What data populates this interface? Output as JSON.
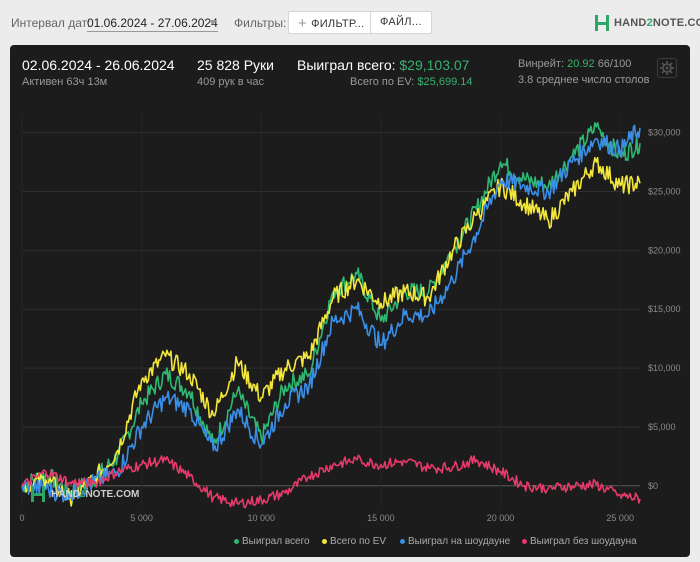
{
  "topbar": {
    "interval_label": "Интервал дат:",
    "date_range": "01.06.2024 - 27.06.2024",
    "filters_label": "Фильтры:",
    "filter_button": "ФИЛЬТР...",
    "file_button": "ФАЙЛ...",
    "logo_hand": "HAND",
    "logo_two": "2",
    "logo_note": "NOTE.COM"
  },
  "summary": {
    "period": "02.06.2024 - 26.06.2024",
    "active": "Активен 63ч 13м",
    "hands": "25 828 Руки",
    "hands_per_hour": "409 рук в час",
    "won_label": "Выиграл всего:",
    "won_value": "$29,103.07",
    "ev_label": "Всего по EV:",
    "ev_value": "$25,699.14",
    "winrate_label": "Винрейт:",
    "winrate_value": "20.92",
    "winrate_suffix": "66/100",
    "tables_avg": "3.8 среднее число столов"
  },
  "colors": {
    "won": "#2eb872",
    "ev": "#f2e73a",
    "showdown": "#3a8ee6",
    "non_showdown": "#e53a6a",
    "accent": "#35b26f"
  },
  "chart_data": {
    "type": "line",
    "x_ticks": [
      0,
      5000,
      10000,
      15000,
      20000,
      25000
    ],
    "x_tick_labels": [
      "0",
      "5 000",
      "10 000",
      "15 000",
      "20 000",
      "25 000"
    ],
    "y_ticks": [
      0,
      5000,
      10000,
      15000,
      20000,
      25000,
      30000
    ],
    "y_tick_labels": [
      "$0",
      "$5,000",
      "$10,000",
      "$15,000",
      "$20,000",
      "$25,000",
      "$30,000"
    ],
    "xlim": [
      0,
      25828
    ],
    "ylim": [
      -1800,
      31500
    ],
    "grid": true,
    "legend_position": "bottom-right",
    "series": [
      {
        "name": "Выиграл всего",
        "color": "#2eb872",
        "x": [
          0,
          1000,
          2000,
          3000,
          4000,
          5000,
          6000,
          7000,
          8000,
          9000,
          10000,
          11000,
          12000,
          13000,
          14000,
          15000,
          16000,
          17000,
          18000,
          19000,
          20000,
          21000,
          22000,
          23000,
          24000,
          25000,
          25828
        ],
        "y": [
          0,
          1000,
          -500,
          500,
          2500,
          7000,
          9500,
          8000,
          3500,
          8000,
          4000,
          8500,
          9500,
          16500,
          18000,
          14000,
          16500,
          16500,
          20000,
          23500,
          27500,
          26000,
          25500,
          28000,
          30500,
          28000,
          29103
        ]
      },
      {
        "name": "Всего по EV",
        "color": "#f2e73a",
        "x": [
          0,
          1000,
          2000,
          3000,
          4000,
          5000,
          6000,
          7000,
          8000,
          9000,
          10000,
          11000,
          12000,
          13000,
          14000,
          15000,
          16000,
          17000,
          18000,
          19000,
          20000,
          21000,
          22000,
          23000,
          24000,
          25000,
          25828
        ],
        "y": [
          0,
          500,
          -1000,
          500,
          3000,
          9000,
          11000,
          9500,
          6000,
          10500,
          7500,
          10000,
          11000,
          16000,
          17500,
          15500,
          16500,
          16000,
          20000,
          23000,
          25500,
          24000,
          22500,
          25000,
          27500,
          25500,
          25699
        ]
      },
      {
        "name": "Выиграл на шоудауне",
        "color": "#3a8ee6",
        "x": [
          0,
          1000,
          2000,
          3000,
          4000,
          5000,
          6000,
          7000,
          8000,
          9000,
          10000,
          11000,
          12000,
          13000,
          14000,
          15000,
          16000,
          17000,
          18000,
          19000,
          20000,
          21000,
          22000,
          23000,
          24000,
          25000,
          25828
        ],
        "y": [
          0,
          -300,
          -800,
          300,
          1200,
          5000,
          7500,
          6500,
          3000,
          6500,
          3500,
          7000,
          8500,
          14000,
          15000,
          12000,
          14500,
          14500,
          17500,
          21500,
          26000,
          25500,
          25000,
          27500,
          29500,
          28500,
          30400
        ]
      },
      {
        "name": "Выиграл без шоудауна",
        "color": "#e53a6a",
        "x": [
          0,
          1000,
          2000,
          3000,
          4000,
          5000,
          6000,
          7000,
          8000,
          9000,
          10000,
          11000,
          12000,
          13000,
          14000,
          15000,
          16000,
          17000,
          18000,
          19000,
          20000,
          21000,
          22000,
          23000,
          24000,
          25000,
          25828
        ],
        "y": [
          0,
          1200,
          300,
          200,
          1200,
          1800,
          2200,
          800,
          -1000,
          -1500,
          -1200,
          -600,
          800,
          1800,
          2200,
          1800,
          2100,
          1500,
          1600,
          2200,
          1200,
          0,
          -200,
          0,
          100,
          -800,
          -1100
        ]
      }
    ]
  },
  "watermark": {
    "hand": "HAND",
    "two": "2",
    "note": "NOTE.COM"
  }
}
